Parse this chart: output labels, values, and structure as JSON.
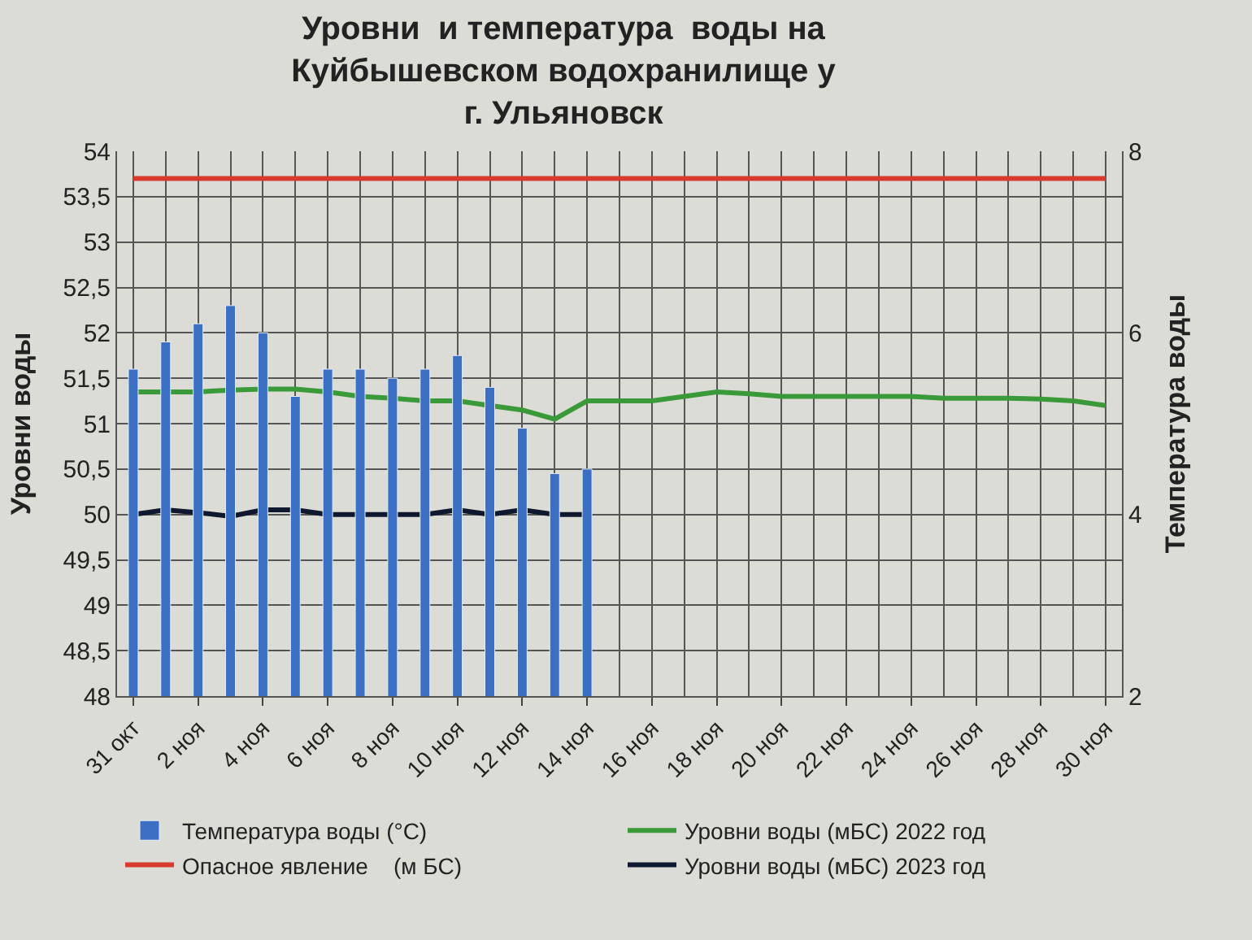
{
  "chart_data": {
    "type": "line",
    "title": "Уровни  и температура  воды на\nКуйбышевском водохранилище у\nг. Ульяновск",
    "ylabel": "Уровни воды",
    "y2label": "Температура воды",
    "categories": [
      "31 окт",
      null,
      "2 ноя",
      null,
      "4 ноя",
      null,
      "6 ноя",
      null,
      "8 ноя",
      null,
      "10 ноя",
      null,
      "12 ноя",
      null,
      "14 ноя",
      null,
      "16 ноя",
      null,
      "18 ноя",
      null,
      "20 ноя",
      null,
      "22 ноя",
      null,
      "24 ноя",
      null,
      "26 ноя",
      null,
      "28 ноя",
      null,
      "30 ноя"
    ],
    "series": [
      {
        "name": "Температура воды (°C)",
        "type": "bar",
        "axis": "y2",
        "color": "#3a6fc4",
        "values": [
          5.6,
          5.9,
          6.1,
          6.3,
          6.0,
          5.3,
          5.6,
          5.6,
          5.5,
          5.6,
          5.75,
          5.4,
          4.95,
          4.45,
          4.5,
          null,
          null,
          null,
          null,
          null,
          null,
          null,
          null,
          null,
          null,
          null,
          null,
          null,
          null,
          null,
          null
        ]
      },
      {
        "name": "Уровни воды (мБС) 2022 год",
        "color": "#3a9a3a",
        "values": [
          51.35,
          51.35,
          51.35,
          51.37,
          51.38,
          51.38,
          51.35,
          51.3,
          51.28,
          51.25,
          51.25,
          51.2,
          51.15,
          51.05,
          51.25,
          51.25,
          51.25,
          51.3,
          51.35,
          51.33,
          51.3,
          51.3,
          51.3,
          51.3,
          51.3,
          51.28,
          51.28,
          51.28,
          51.27,
          51.25,
          51.2
        ]
      },
      {
        "name": "Опасное явление    (м БС)",
        "color": "#d83a2e",
        "values": [
          53.7,
          53.7,
          53.7,
          53.7,
          53.7,
          53.7,
          53.7,
          53.7,
          53.7,
          53.7,
          53.7,
          53.7,
          53.7,
          53.7,
          53.7,
          53.7,
          53.7,
          53.7,
          53.7,
          53.7,
          53.7,
          53.7,
          53.7,
          53.7,
          53.7,
          53.7,
          53.7,
          53.7,
          53.7,
          53.7,
          53.7
        ]
      },
      {
        "name": "Уровни воды (мБС) 2023 год",
        "color": "#101830",
        "values": [
          50.0,
          50.05,
          50.02,
          49.98,
          50.05,
          50.05,
          50.0,
          50.0,
          50.0,
          50.0,
          50.05,
          50.0,
          50.05,
          50.0,
          50.0,
          null,
          null,
          null,
          null,
          null,
          null,
          null,
          null,
          null,
          null,
          null,
          null,
          null,
          null,
          null,
          null
        ]
      }
    ],
    "ylim": [
      48,
      54
    ],
    "yticks": [
      48,
      {
        "value": 48.5,
        "label": "48,5"
      },
      49,
      {
        "value": 49.5,
        "label": "49,5"
      },
      50,
      {
        "value": 50.5,
        "label": "50,5"
      },
      51,
      {
        "value": 51.5,
        "label": "51,5"
      },
      52,
      {
        "value": 52.5,
        "label": "52,5"
      },
      53,
      {
        "value": 53.5,
        "label": "53,5"
      },
      54
    ],
    "y2lim": [
      2,
      8
    ],
    "y2ticks": [
      2,
      4,
      6,
      8
    ],
    "grid": true,
    "legend": "bottom",
    "marker": "none",
    "line_style": "solid"
  }
}
